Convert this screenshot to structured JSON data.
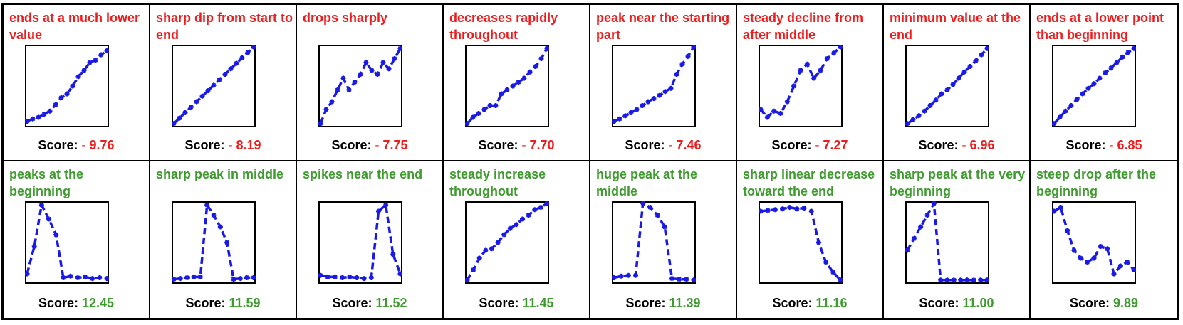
{
  "score_label": "Score:",
  "colors": {
    "negative": "#ee1c1c",
    "positive": "#3f9a2f",
    "line": "#1a1ae6",
    "frame": "#000000"
  },
  "chart_data": [
    {
      "type": "line",
      "caption": "ends at a much lower value",
      "score": "- 9.76",
      "polarity": "negative",
      "values": [
        0.05,
        0.08,
        0.1,
        0.14,
        0.18,
        0.26,
        0.35,
        0.4,
        0.5,
        0.62,
        0.7,
        0.8,
        0.83,
        0.9,
        0.95
      ]
    },
    {
      "type": "line",
      "caption": "sharp dip from start to end",
      "score": "- 8.19",
      "polarity": "negative",
      "values": [
        0.02,
        0.09,
        0.16,
        0.23,
        0.3,
        0.37,
        0.44,
        0.51,
        0.58,
        0.65,
        0.72,
        0.79,
        0.86,
        0.93,
        1.0
      ]
    },
    {
      "type": "line",
      "caption": "drops sharply",
      "score": "- 7.75",
      "polarity": "negative",
      "values": [
        0.02,
        0.2,
        0.3,
        0.45,
        0.6,
        0.45,
        0.55,
        0.65,
        0.8,
        0.7,
        0.65,
        0.8,
        0.72,
        0.85,
        0.98
      ]
    },
    {
      "type": "line",
      "caption": "decreases rapidly throughout",
      "score": "- 7.70",
      "polarity": "negative",
      "values": [
        0.02,
        0.1,
        0.15,
        0.2,
        0.25,
        0.25,
        0.4,
        0.45,
        0.5,
        0.55,
        0.6,
        0.68,
        0.75,
        0.85,
        0.98
      ]
    },
    {
      "type": "line",
      "caption": "peak near the starting part",
      "score": "- 7.46",
      "polarity": "negative",
      "values": [
        0.05,
        0.08,
        0.12,
        0.16,
        0.2,
        0.25,
        0.3,
        0.34,
        0.38,
        0.43,
        0.47,
        0.65,
        0.78,
        0.88,
        1.0
      ]
    },
    {
      "type": "line",
      "caption": "steady decline from after middle",
      "score": "- 7.27",
      "polarity": "negative",
      "values": [
        0.2,
        0.1,
        0.18,
        0.15,
        0.3,
        0.5,
        0.7,
        0.78,
        0.6,
        0.7,
        0.85,
        0.92,
        1.0
      ]
    },
    {
      "type": "line",
      "caption": "minimum value at the end",
      "score": "- 6.96",
      "polarity": "negative",
      "values": [
        0.02,
        0.07,
        0.12,
        0.18,
        0.25,
        0.32,
        0.4,
        0.45,
        0.52,
        0.6,
        0.68,
        0.75,
        0.82,
        0.9,
        0.98
      ]
    },
    {
      "type": "line",
      "caption": "ends at a lower point than beginning",
      "score": "- 6.85",
      "polarity": "negative",
      "values": [
        0.02,
        0.1,
        0.18,
        0.25,
        0.33,
        0.4,
        0.47,
        0.53,
        0.6,
        0.67,
        0.73,
        0.8,
        0.87,
        0.93,
        0.98
      ]
    },
    {
      "type": "line",
      "caption": "peaks at the beginning",
      "score": "12.45",
      "polarity": "positive",
      "values": [
        0.1,
        0.45,
        0.98,
        0.8,
        0.6,
        0.05,
        0.07,
        0.05,
        0.06,
        0.04,
        0.05,
        0.04
      ]
    },
    {
      "type": "line",
      "caption": "sharp peak in middle",
      "score": "11.59",
      "polarity": "positive",
      "values": [
        0.03,
        0.04,
        0.05,
        0.06,
        0.06,
        0.98,
        0.85,
        0.7,
        0.5,
        0.03,
        0.04,
        0.05,
        0.05
      ]
    },
    {
      "type": "line",
      "caption": "spikes near the end",
      "score": "11.52",
      "polarity": "positive",
      "values": [
        0.08,
        0.06,
        0.06,
        0.05,
        0.06,
        0.05,
        0.04,
        0.05,
        0.9,
        0.98,
        0.35,
        0.1
      ]
    },
    {
      "type": "line",
      "caption": "steady increase throughout",
      "score": "11.45",
      "polarity": "positive",
      "values": [
        0.02,
        0.15,
        0.3,
        0.4,
        0.42,
        0.5,
        0.6,
        0.68,
        0.73,
        0.8,
        0.85,
        0.92,
        0.95,
        1.0
      ]
    },
    {
      "type": "line",
      "caption": "huge peak at the middle",
      "score": "11.39",
      "polarity": "positive",
      "values": [
        0.05,
        0.07,
        0.08,
        0.08,
        1.0,
        0.95,
        0.85,
        0.7,
        0.04,
        0.03,
        0.03,
        0.02
      ]
    },
    {
      "type": "line",
      "caption": "sharp linear decrease toward the end",
      "score": "11.16",
      "polarity": "positive",
      "values": [
        0.9,
        0.91,
        0.92,
        0.93,
        0.95,
        0.93,
        0.94,
        0.9,
        0.5,
        0.25,
        0.12,
        0.02
      ]
    },
    {
      "type": "line",
      "caption": "sharp peak at the very beginning",
      "score": "11.00",
      "polarity": "positive",
      "values": [
        0.4,
        0.55,
        0.7,
        0.85,
        1.0,
        0.02,
        0.02,
        0.02,
        0.02,
        0.02,
        0.02,
        0.02,
        0.02
      ]
    },
    {
      "type": "line",
      "caption": "steep drop after the beginning",
      "score": "9.89",
      "polarity": "positive",
      "values": [
        0.9,
        0.95,
        0.65,
        0.4,
        0.3,
        0.25,
        0.3,
        0.45,
        0.42,
        0.1,
        0.2,
        0.25,
        0.15
      ]
    }
  ]
}
